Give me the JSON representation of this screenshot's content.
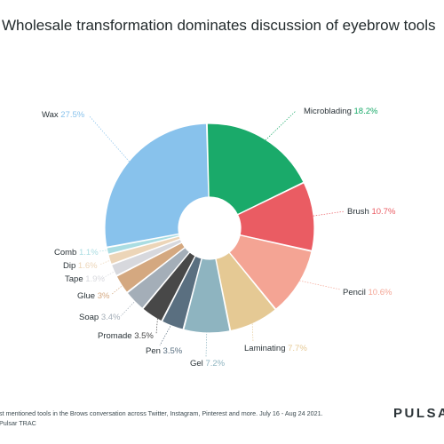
{
  "title": "Wholesale transformation dominates discussion of eyebrow tools",
  "footnote": {
    "line1": "st mentioned tools in the Brows conversation across Twitter, Instagram, Pinterest and more. July 16 - Aug 24 2021.",
    "line2": "Pulsar TRAC"
  },
  "brand": "PULSAR",
  "chart_data": {
    "type": "pie",
    "donut": true,
    "slices": [
      {
        "label": "Microblading",
        "value": 18.2,
        "value_label": "18.2%",
        "color": "#1aaa6a"
      },
      {
        "label": "Brush",
        "value": 10.7,
        "value_label": "10.7%",
        "color": "#ea5c63"
      },
      {
        "label": "Pencil",
        "value": 10.6,
        "value_label": "10.6%",
        "color": "#f4a494"
      },
      {
        "label": "Laminating",
        "value": 7.7,
        "value_label": "7.7%",
        "color": "#e5c994"
      },
      {
        "label": "Gel",
        "value": 7.2,
        "value_label": "7.2%",
        "color": "#8eb4c0"
      },
      {
        "label": "Pen",
        "value": 3.5,
        "value_label": "3.5%",
        "color": "#5a6f80"
      },
      {
        "label": "Promade",
        "value": 3.5,
        "value_label": "3.5%",
        "color": "#484848"
      },
      {
        "label": "Soap",
        "value": 3.4,
        "value_label": "3.4%",
        "color": "#a4aeb8"
      },
      {
        "label": "Glue",
        "value": 3.0,
        "value_label": "3%",
        "color": "#d4a880"
      },
      {
        "label": "Tape",
        "value": 1.9,
        "value_label": "1.9%",
        "color": "#d7d8dd"
      },
      {
        "label": "Dip",
        "value": 1.6,
        "value_label": "1.6%",
        "color": "#ecd5b8"
      },
      {
        "label": "Comb",
        "value": 1.1,
        "value_label": "1.1%",
        "color": "#aadde2"
      },
      {
        "label": "Wax",
        "value": 27.5,
        "value_label": "27.5%",
        "color": "#88c2ec"
      }
    ]
  }
}
